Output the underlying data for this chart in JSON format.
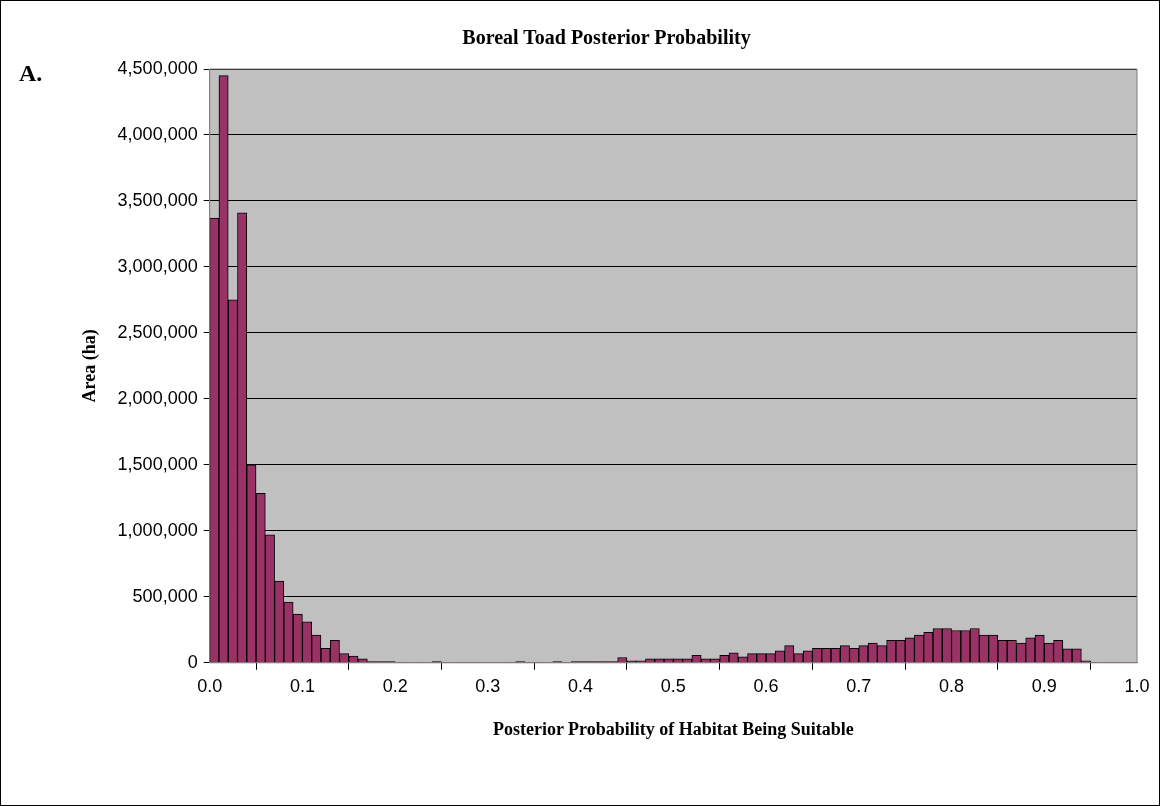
{
  "chart_data": {
    "type": "histogram",
    "title": "Boreal Toad Posterior Probability",
    "xlabel": "Posterior Probability of Habitat Being Suitable",
    "ylabel": "Area (ha)",
    "annotations": [
      "A."
    ],
    "bins": [
      0,
      0.01,
      0.02,
      0.03,
      0.04,
      0.05,
      0.06,
      0.07,
      0.08,
      0.09,
      0.1,
      0.11,
      0.12,
      0.13,
      0.14,
      0.15,
      0.16,
      0.17,
      0.18,
      0.19,
      0.2,
      0.21,
      0.22,
      0.23,
      0.24,
      0.25,
      0.26,
      0.27,
      0.28,
      0.29,
      0.3,
      0.31,
      0.32,
      0.33,
      0.34,
      0.35,
      0.36,
      0.37,
      0.38,
      0.39,
      0.4,
      0.41,
      0.42,
      0.43,
      0.44,
      0.45,
      0.46,
      0.47,
      0.48,
      0.49,
      0.5,
      0.51,
      0.52,
      0.53,
      0.54,
      0.55,
      0.56,
      0.57,
      0.58,
      0.59,
      0.6,
      0.61,
      0.62,
      0.63,
      0.64,
      0.65,
      0.66,
      0.67,
      0.68,
      0.69,
      0.7,
      0.71,
      0.72,
      0.73,
      0.74,
      0.75,
      0.76,
      0.77,
      0.78,
      0.79,
      0.8,
      0.81,
      0.82,
      0.83,
      0.84,
      0.85,
      0.86,
      0.87,
      0.88,
      0.89,
      0.9,
      0.91,
      0.92,
      0.93,
      0.94,
      0.95,
      0.96,
      0.97,
      0.98,
      0.99,
      1
    ],
    "values": [
      3370000,
      4450000,
      2750000,
      3410000,
      1500000,
      1285000,
      970000,
      620000,
      460000,
      370000,
      310000,
      210000,
      110000,
      170000,
      70000,
      50000,
      30000,
      10000,
      10000,
      10000,
      0,
      0,
      0,
      0,
      10000,
      0,
      0,
      0,
      0,
      0,
      0,
      0,
      0,
      10000,
      0,
      0,
      0,
      10000,
      0,
      10000,
      10000,
      10000,
      10000,
      10000,
      40000,
      15000,
      15000,
      30000,
      30000,
      30000,
      30000,
      30000,
      56000,
      30000,
      30000,
      56000,
      76000,
      45000,
      70000,
      70000,
      70000,
      90000,
      130000,
      70000,
      90000,
      110000,
      110000,
      110000,
      130000,
      110000,
      130000,
      150000,
      130000,
      170000,
      170000,
      190000,
      210000,
      230000,
      260000,
      260000,
      245000,
      245000,
      260000,
      210000,
      210000,
      170000,
      170000,
      150000,
      190000,
      210000,
      150000,
      170000,
      105000,
      105000,
      15000,
      0,
      0,
      0,
      0,
      0
    ],
    "color": "#993366",
    "xlim": [
      0,
      1
    ],
    "xticks": [
      {
        "value": 0,
        "label": "0.0"
      },
      0.1,
      0.2,
      0.3,
      0.4,
      0.5,
      0.6,
      0.7,
      0.8,
      0.9,
      {
        "value": 1,
        "label": "1.0"
      }
    ],
    "ylim": [
      0,
      4500000
    ],
    "yticks": [
      {
        "value": 0,
        "label": "0"
      },
      {
        "value": 500000,
        "label": "500,000"
      },
      {
        "value": 1000000,
        "label": "1,000,000"
      },
      {
        "value": 1500000,
        "label": "1,500,000"
      },
      {
        "value": 2000000,
        "label": "2,000,000"
      },
      {
        "value": 2500000,
        "label": "2,500,000"
      },
      {
        "value": 3000000,
        "label": "3,000,000"
      },
      {
        "value": 3500000,
        "label": "3,500,000"
      },
      {
        "value": 4000000,
        "label": "4,000,000"
      },
      {
        "value": 4500000,
        "label": "4,500,000"
      }
    ],
    "grid": "y",
    "legend": false
  }
}
